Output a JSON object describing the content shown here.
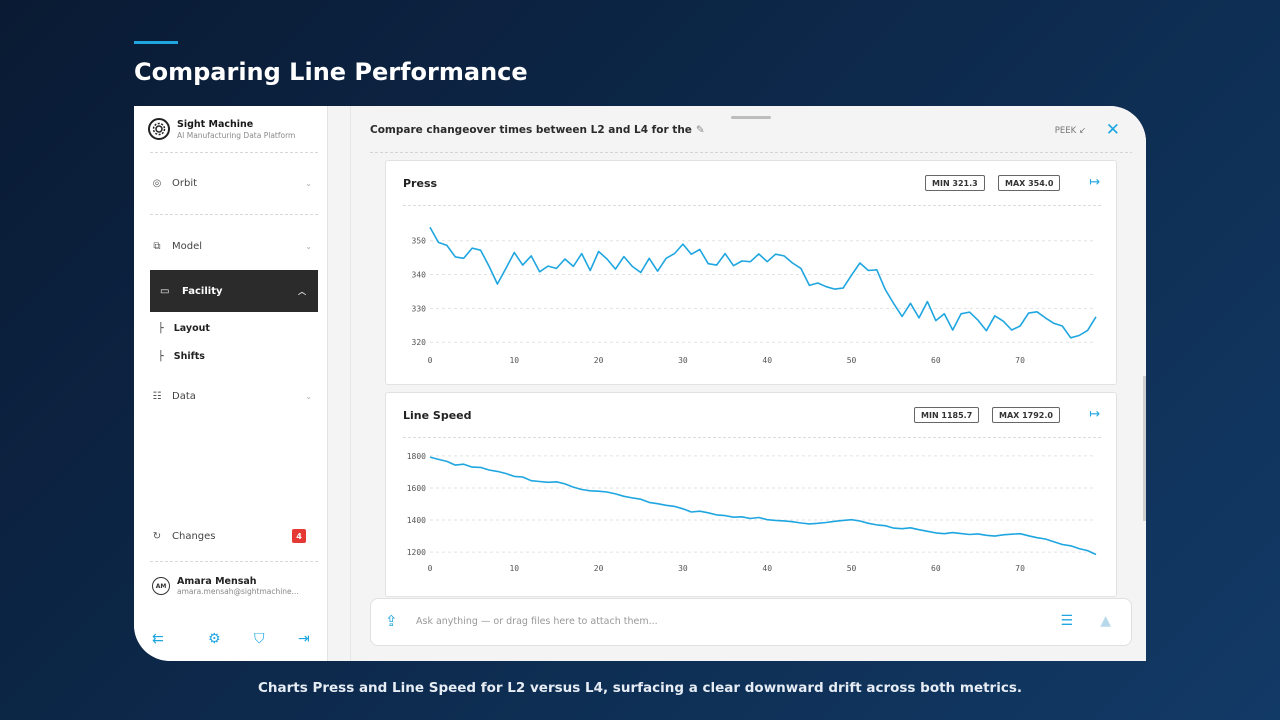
{
  "slide": {
    "title": "Comparing Line Performance",
    "caption": "Charts Press and Line Speed for L2 versus L4, surfacing a clear downward drift across both metrics."
  },
  "sidebar": {
    "brand_name": "Sight Machine",
    "brand_sub": "AI Manufacturing Data Platform",
    "items": [
      {
        "label": "Orbit",
        "icon": "orbit-icon"
      },
      {
        "label": "Model",
        "icon": "model-icon"
      },
      {
        "label": "Facility",
        "icon": "facility-icon"
      },
      {
        "label": "Data",
        "icon": "data-icon"
      }
    ],
    "sub_items": [
      {
        "label": "Layout"
      },
      {
        "label": "Shifts"
      }
    ],
    "changes": {
      "label": "Changes",
      "count": "4"
    },
    "user": {
      "initials": "AM",
      "name": "Amara Mensah",
      "email": "amara.mensah@sightmachine..."
    }
  },
  "main": {
    "query": "Compare changeover times between L2 and L4 for the",
    "peek_label": "PEEK",
    "input_placeholder": "Ask anything — or drag files here to attach them..."
  },
  "colors": {
    "accent": "#1fa6e0",
    "badge": "#e53935",
    "active_nav": "#2b2b2b"
  },
  "chart_data": [
    {
      "type": "line",
      "title": "Press",
      "min_label": "MIN 321.3",
      "max_label": "MAX 354.0",
      "xlim": [
        0,
        79
      ],
      "ylim": [
        318,
        357
      ],
      "x_ticks": [
        0,
        10,
        20,
        30,
        40,
        50,
        60,
        70
      ],
      "y_ticks": [
        320,
        330,
        340,
        350
      ],
      "series": [
        {
          "values": [
            354.0,
            349.5,
            348.6,
            345.2,
            344.8,
            347.8,
            347.2,
            342.5,
            337.2,
            341.8,
            346.5,
            342.8,
            345.5,
            340.8,
            342.5,
            341.8,
            344.6,
            342.4,
            346.2,
            341.2,
            346.8,
            344.6,
            341.6,
            345.3,
            342.4,
            340.6,
            344.8,
            341.0,
            344.8,
            346.2,
            349.0,
            346.0,
            347.4,
            343.2,
            342.8,
            346.2,
            342.6,
            344.0,
            343.8,
            346.1,
            343.8,
            346.0,
            345.5,
            343.4,
            341.8,
            336.8,
            337.5,
            336.4,
            335.7,
            336.0,
            339.8,
            343.4,
            341.2,
            341.4,
            335.6,
            331.4,
            327.6,
            331.5,
            327.2,
            332.0,
            326.4,
            328.4,
            323.6,
            328.4,
            328.9,
            326.5,
            323.4,
            327.8,
            326.2,
            323.6,
            324.8,
            328.6,
            329.0,
            327.2,
            325.6,
            324.8,
            321.3,
            322.0,
            323.5,
            327.5
          ]
        }
      ]
    },
    {
      "type": "line",
      "title": "Line Speed",
      "min_label": "MIN 1185.7",
      "max_label": "MAX 1792.0",
      "xlim": [
        0,
        79
      ],
      "ylim": [
        1170,
        1830
      ],
      "x_ticks": [
        0,
        10,
        20,
        30,
        40,
        50,
        60,
        70
      ],
      "y_ticks": [
        1200,
        1400,
        1600,
        1800
      ],
      "series": [
        {
          "values": [
            1792,
            1778,
            1765,
            1742,
            1748,
            1730,
            1728,
            1712,
            1703,
            1690,
            1672,
            1668,
            1645,
            1640,
            1635,
            1638,
            1625,
            1605,
            1590,
            1582,
            1580,
            1575,
            1563,
            1548,
            1538,
            1530,
            1510,
            1502,
            1492,
            1485,
            1470,
            1450,
            1455,
            1445,
            1432,
            1428,
            1418,
            1420,
            1410,
            1416,
            1402,
            1398,
            1395,
            1390,
            1382,
            1376,
            1380,
            1385,
            1392,
            1398,
            1402,
            1394,
            1380,
            1370,
            1365,
            1350,
            1346,
            1352,
            1340,
            1330,
            1320,
            1315,
            1322,
            1316,
            1310,
            1314,
            1305,
            1300,
            1308,
            1312,
            1315,
            1302,
            1290,
            1282,
            1265,
            1248,
            1240,
            1222,
            1210,
            1185.7
          ]
        }
      ]
    }
  ]
}
